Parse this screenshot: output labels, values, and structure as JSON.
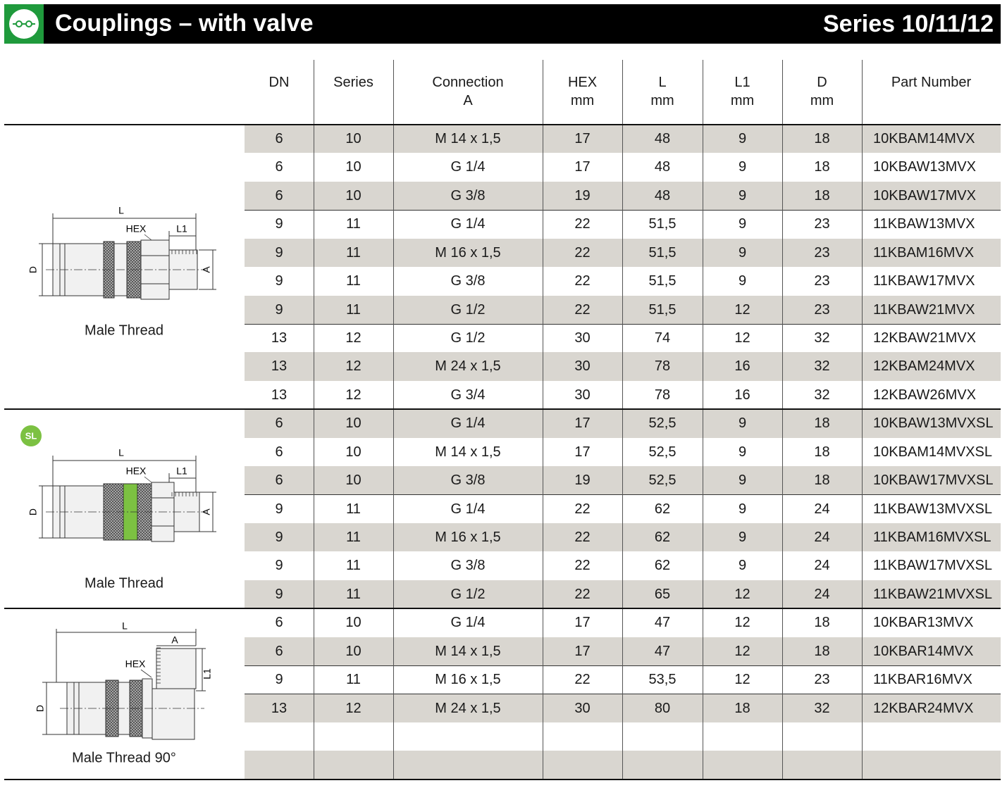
{
  "header": {
    "title": "Couplings – with valve",
    "series": "Series 10/11/12"
  },
  "table": {
    "columns": [
      [
        "DN"
      ],
      [
        "Series"
      ],
      [
        "Connection",
        "A"
      ],
      [
        "HEX",
        "mm"
      ],
      [
        "L",
        "mm"
      ],
      [
        "L1",
        "mm"
      ],
      [
        "D",
        "mm"
      ],
      [
        "Part Number"
      ]
    ],
    "groups": [
      {
        "caption": "Male Thread",
        "diagram": {
          "l": "L",
          "hex": "HEX",
          "l1": "L1",
          "d": "D",
          "a": "A"
        },
        "rows": [
          [
            6,
            10,
            "M 14 x 1,5",
            17,
            48,
            9,
            18,
            "10KBAM14MVX"
          ],
          [
            6,
            10,
            "G 1/4",
            17,
            48,
            9,
            18,
            "10KBAW13MVX"
          ],
          [
            6,
            10,
            "G 3/8",
            19,
            48,
            9,
            18,
            "10KBAW17MVX"
          ],
          [
            9,
            11,
            "G 1/4",
            22,
            "51,5",
            9,
            23,
            "11KBAW13MVX"
          ],
          [
            9,
            11,
            "M 16 x 1,5",
            22,
            "51,5",
            9,
            23,
            "11KBAM16MVX"
          ],
          [
            9,
            11,
            "G 3/8",
            22,
            "51,5",
            9,
            23,
            "11KBAW17MVX"
          ],
          [
            9,
            11,
            "G 1/2",
            22,
            "51,5",
            12,
            23,
            "11KBAW21MVX"
          ],
          [
            13,
            12,
            "G 1/2",
            30,
            74,
            12,
            32,
            "12KBAW21MVX"
          ],
          [
            13,
            12,
            "M 24 x 1,5",
            30,
            78,
            16,
            32,
            "12KBAM24MVX"
          ],
          [
            13,
            12,
            "G 3/4",
            30,
            78,
            16,
            32,
            "12KBAW26MVX"
          ]
        ]
      },
      {
        "badge": "SL",
        "caption": "Male Thread",
        "diagram": {
          "l": "L",
          "hex": "HEX",
          "l1": "L1",
          "d": "D",
          "a": "A"
        },
        "rows": [
          [
            6,
            10,
            "G 1/4",
            17,
            "52,5",
            9,
            18,
            "10KBAW13MVXSL"
          ],
          [
            6,
            10,
            "M 14 x 1,5",
            17,
            "52,5",
            9,
            18,
            "10KBAM14MVXSL"
          ],
          [
            6,
            10,
            "G 3/8",
            19,
            "52,5",
            9,
            18,
            "10KBAW17MVXSL"
          ],
          [
            9,
            11,
            "G 1/4",
            22,
            62,
            9,
            24,
            "11KBAW13MVXSL"
          ],
          [
            9,
            11,
            "M 16 x 1,5",
            22,
            62,
            9,
            24,
            "11KBAM16MVXSL"
          ],
          [
            9,
            11,
            "G 3/8",
            22,
            62,
            9,
            24,
            "11KBAW17MVXSL"
          ],
          [
            9,
            11,
            "G 1/2",
            22,
            65,
            12,
            24,
            "11KBAW21MVXSL"
          ]
        ]
      },
      {
        "caption": "Male Thread 90°",
        "diagram": {
          "l": "L",
          "hex": "HEX",
          "l1": "L1",
          "d": "D",
          "a": "A"
        },
        "rows": [
          [
            6,
            10,
            "G 1/4",
            17,
            47,
            12,
            18,
            "10KBAR13MVX"
          ],
          [
            6,
            10,
            "M 14 x 1,5",
            17,
            47,
            12,
            18,
            "10KBAR14MVX"
          ],
          [
            9,
            11,
            "M 16 x 1,5",
            22,
            "53,5",
            12,
            23,
            "11KBAR16MVX"
          ],
          [
            13,
            12,
            "M 24 x 1,5",
            30,
            80,
            18,
            32,
            "12KBAR24MVX"
          ]
        ]
      }
    ]
  }
}
